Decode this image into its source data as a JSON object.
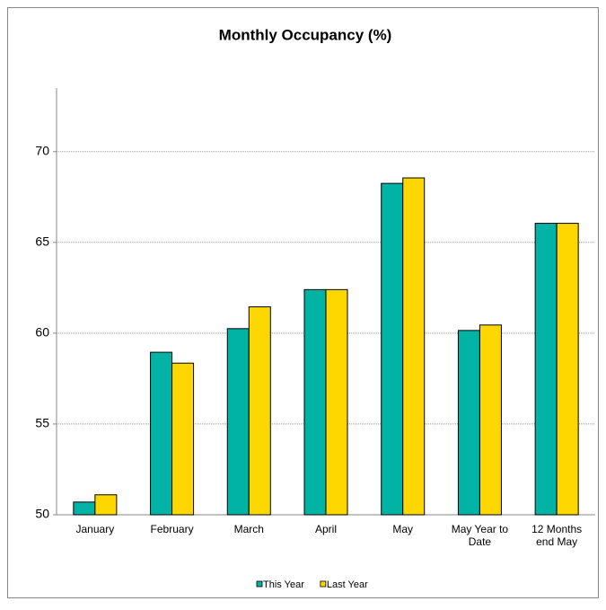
{
  "chart_data": {
    "type": "bar",
    "title": "Monthly Occupancy (%)",
    "categories": [
      "January",
      "February",
      "March",
      "April",
      "May",
      "May Year to Date",
      "12 Months end May"
    ],
    "series": [
      {
        "name": "This Year",
        "color": "#00B3A4",
        "values": [
          50.7,
          58.95,
          60.25,
          62.4,
          68.25,
          60.15,
          66.05
        ]
      },
      {
        "name": "Last Year",
        "color": "#FFD700",
        "values": [
          51.1,
          58.35,
          61.45,
          62.4,
          68.55,
          60.45,
          66.05
        ]
      }
    ],
    "ylim": [
      50,
      73.5
    ],
    "yticks": [
      50,
      55,
      60,
      65,
      70
    ],
    "grid": true,
    "legend": "bottom"
  }
}
